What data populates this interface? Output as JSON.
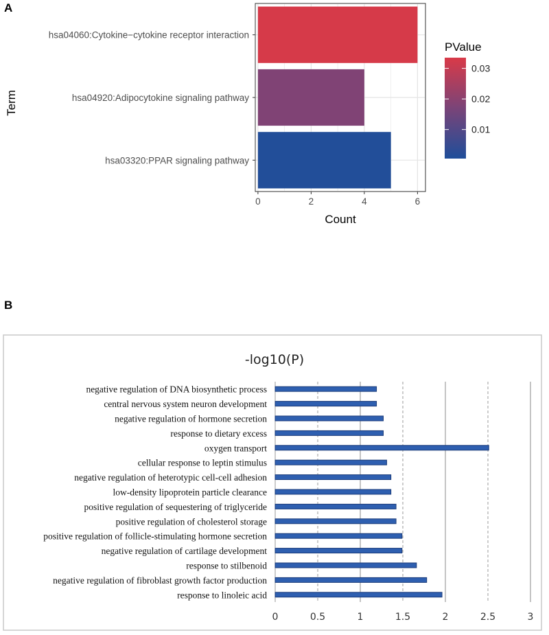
{
  "panel_labels": {
    "a": "A",
    "b": "B"
  },
  "colors": {
    "low": "#1f4e9a",
    "mid": "#7a4478",
    "high": "#d93a48",
    "bar_b_fill": "#2e5fb0",
    "bar_b_stroke": "#1a3a78",
    "panel_grid": "#e4e4e4"
  },
  "chart_data": [
    {
      "type": "bar",
      "orientation": "horizontal",
      "categories": [
        "hsa04060:Cytokine−cytokine receptor interaction",
        "hsa04920:Adipocytokine signaling pathway",
        "hsa03320:PPAR signaling pathway"
      ],
      "values": [
        6,
        4,
        5
      ],
      "pvalues": [
        0.033,
        0.018,
        0.001
      ],
      "xlabel": "Count",
      "ylabel": "Term",
      "xlim": [
        -0.1,
        6.3
      ],
      "xticks": [
        "0",
        "2",
        "4",
        "6"
      ],
      "legend": {
        "title": "PValue",
        "ticks": [
          "0.03",
          "0.02",
          "0.01"
        ],
        "tick_values": [
          0.03,
          0.02,
          0.01
        ],
        "range": [
          0.0005,
          0.0335
        ],
        "position": "right"
      }
    },
    {
      "type": "bar",
      "orientation": "horizontal",
      "title": "-log10(P)",
      "categories": [
        "negative regulation of DNA biosynthetic process",
        "central nervous system neuron development",
        "negative regulation of hormone secretion",
        "response to dietary excess",
        "oxygen transport",
        "cellular response to leptin stimulus",
        "negative regulation of heterotypic cell-cell adhesion",
        "low-density lipoprotein particle clearance",
        "positive regulation of sequestering of triglyceride",
        "positive regulation of cholesterol storage",
        "positive regulation of follicle-stimulating hormone secretion",
        "negative regulation of cartilage development",
        "response to stilbenoid",
        "negative regulation of fibroblast growth factor production",
        "response to linoleic acid"
      ],
      "values": [
        1.19,
        1.19,
        1.27,
        1.27,
        2.51,
        1.31,
        1.36,
        1.36,
        1.42,
        1.42,
        1.49,
        1.49,
        1.66,
        1.78,
        1.96
      ],
      "xlim": [
        0,
        3
      ],
      "xticks": [
        "0",
        "0.5",
        "1",
        "1.5",
        "2",
        "2.5",
        "3"
      ],
      "grid": true
    }
  ]
}
